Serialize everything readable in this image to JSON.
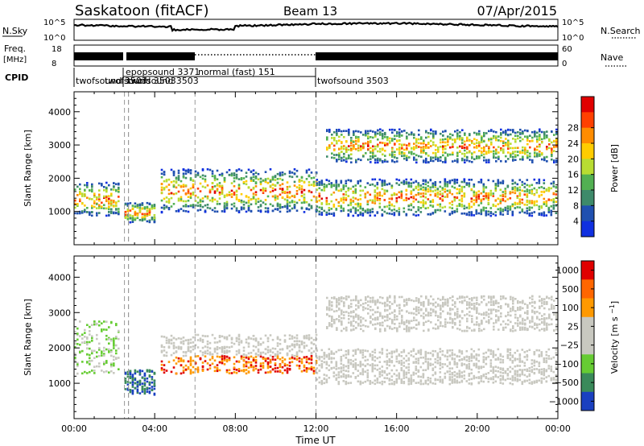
{
  "header": {
    "station": "Saskatoon (fitACF)",
    "beam": "Beam 13",
    "date": "07/Apr/2015"
  },
  "top_panels": {
    "nsky_label": "N.Sky",
    "nsky_ticks": [
      "10^5",
      "10^0"
    ],
    "nsearch_label": "N.Search",
    "nsearch_ticks": [
      "10^5",
      "10^0"
    ],
    "freq_label": "Freq.",
    "freq_unit": "[MHz]",
    "freq_ticks": [
      "18",
      "8"
    ],
    "nave_label": "Nave",
    "nave_ticks": [
      "60",
      "0"
    ],
    "cpid_label": "CPID"
  },
  "cpid_segments": [
    {
      "name": "twofsound 3503",
      "start": 0.0,
      "end": 2.5
    },
    {
      "name": "twofsound 3503",
      "start": 2.5,
      "end": 2.7
    },
    {
      "name": "epopsound 3371",
      "start": 2.7,
      "end": 6.0
    },
    {
      "name": "twofsound 3503",
      "start": 2.7,
      "end": 6.0
    },
    {
      "name": "normal (fast) 151",
      "start": 6.0,
      "end": 12.0
    },
    {
      "name": "twofsound 3503",
      "start": 12.0,
      "end": 24.0
    }
  ],
  "chart_data": [
    {
      "type": "heatmap",
      "title": "",
      "xlabel": "",
      "ylabel": "Slant Range [km]",
      "xlim": [
        0,
        24
      ],
      "ylim": [
        0,
        4600
      ],
      "yticks": [
        1000,
        2000,
        3000,
        4000
      ],
      "colorbar": {
        "label": "Power [dB]",
        "ticks": [
          4,
          8,
          12,
          16,
          20,
          24,
          28
        ],
        "colors": [
          "#1030e0",
          "#2050b0",
          "#3e8a6a",
          "#52b052",
          "#b8dc32",
          "#ffcc00",
          "#ff8c00",
          "#ff4000",
          "#e00000"
        ]
      },
      "echo_bands": [
        {
          "from_hr": 0.0,
          "to_hr": 2.2,
          "range_km": [
            900,
            1900
          ]
        },
        {
          "from_hr": 2.5,
          "to_hr": 4.0,
          "range_km": [
            700,
            1300
          ]
        },
        {
          "from_hr": 4.3,
          "to_hr": 12.0,
          "range_km": [
            1000,
            2300
          ]
        },
        {
          "from_hr": 12.0,
          "to_hr": 24.0,
          "range_km": [
            900,
            2000
          ]
        },
        {
          "from_hr": 12.5,
          "to_hr": 24.0,
          "range_km": [
            2500,
            3500
          ]
        }
      ]
    },
    {
      "type": "heatmap",
      "title": "",
      "xlabel": "Time UT",
      "ylabel": "Slant Range [km]",
      "xlim": [
        0,
        24
      ],
      "ylim": [
        0,
        4600
      ],
      "yticks": [
        1000,
        2000,
        3000,
        4000
      ],
      "xticks": [
        "00:00",
        "04:00",
        "08:00",
        "12:00",
        "16:00",
        "20:00",
        "00:00"
      ],
      "colorbar": {
        "label": "Velocity [m s^-1]",
        "ticks": [
          "1000",
          "500",
          "100",
          "25",
          "−25",
          "−100",
          "−500",
          "−1000"
        ],
        "colors": [
          "#1a40c0",
          "#3a8a5a",
          "#66cc33",
          "#c8c8c0",
          "#c8c8c0",
          "#ff9900",
          "#ff6600",
          "#e00000"
        ]
      },
      "echo_bands": [
        {
          "from_hr": 0.0,
          "to_hr": 2.2,
          "range_km": [
            1300,
            2800
          ]
        },
        {
          "from_hr": 2.5,
          "to_hr": 4.0,
          "range_km": [
            700,
            1400
          ]
        },
        {
          "from_hr": 4.3,
          "to_hr": 12.0,
          "range_km": [
            1300,
            2400
          ]
        },
        {
          "from_hr": 12.0,
          "to_hr": 24.0,
          "range_km": [
            1000,
            2000
          ]
        },
        {
          "from_hr": 12.5,
          "to_hr": 24.0,
          "range_km": [
            2500,
            3500
          ]
        }
      ]
    }
  ]
}
